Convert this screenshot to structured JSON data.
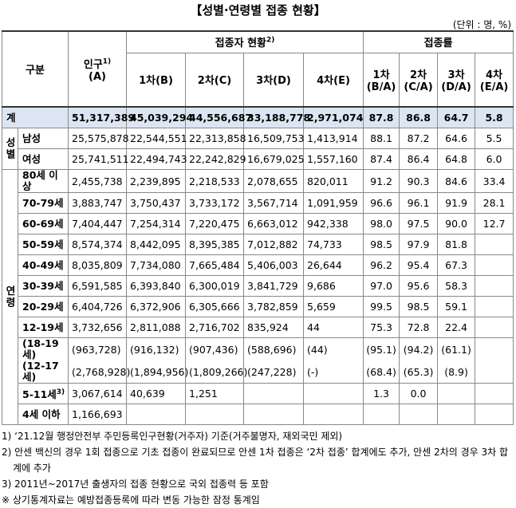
{
  "title": "【성별·연령별 접종 현황】",
  "unit": "(단위 : 명, %)",
  "header": {
    "category": "구분",
    "population": {
      "text": "인구",
      "note": "1)",
      "sub": "(A)"
    },
    "vaccinated": {
      "text": "접종자 현황",
      "note": "2)",
      "columns": [
        "1차(B)",
        "2차(C)",
        "3차(D)",
        "4차(E)"
      ]
    },
    "rate": {
      "text": "접종률",
      "columns": [
        [
          "1차",
          "(B/A)"
        ],
        [
          "2차",
          "(C/A)"
        ],
        [
          "3차",
          "(D/A)"
        ],
        [
          "4차",
          "(E/A)"
        ]
      ]
    }
  },
  "sections": [
    {
      "label": null,
      "rows": [
        {
          "label": "계",
          "values": [
            "51,317,389",
            "45,039,294",
            "44,556,687",
            "33,188,778",
            "2,971,074",
            "87.8",
            "86.8",
            "64.7",
            "5.8"
          ]
        }
      ]
    },
    {
      "label": "성별",
      "rows": [
        {
          "label": "남성",
          "values": [
            "25,575,878",
            "22,544,551",
            "22,313,858",
            "16,509,753",
            "1,413,914",
            "88.1",
            "87.2",
            "64.6",
            "5.5"
          ]
        },
        {
          "label": "여성",
          "values": [
            "25,741,511",
            "22,494,743",
            "22,242,829",
            "16,679,025",
            "1,557,160",
            "87.4",
            "86.4",
            "64.8",
            "6.0"
          ]
        }
      ]
    },
    {
      "label": "연령",
      "rows": [
        {
          "label": "80세 이상",
          "values": [
            "2,455,738",
            "2,239,895",
            "2,218,533",
            "2,078,655",
            "820,011",
            "91.2",
            "90.3",
            "84.6",
            "33.4"
          ]
        },
        {
          "label": "70-79세",
          "values": [
            "3,883,747",
            "3,750,437",
            "3,733,172",
            "3,567,714",
            "1,091,959",
            "96.6",
            "96.1",
            "91.9",
            "28.1"
          ]
        },
        {
          "label": "60-69세",
          "values": [
            "7,404,447",
            "7,254,314",
            "7,220,475",
            "6,663,012",
            "942,338",
            "98.0",
            "97.5",
            "90.0",
            "12.7"
          ]
        },
        {
          "label": "50-59세",
          "values": [
            "8,574,374",
            "8,442,095",
            "8,395,385",
            "7,012,882",
            "74,733",
            "98.5",
            "97.9",
            "81.8",
            null
          ]
        },
        {
          "label": "40-49세",
          "values": [
            "8,035,809",
            "7,734,080",
            "7,665,484",
            "5,406,003",
            "26,644",
            "96.2",
            "95.4",
            "67.3",
            null
          ]
        },
        {
          "label": "30-39세",
          "values": [
            "6,591,585",
            "6,393,840",
            "6,300,019",
            "3,841,729",
            "9,686",
            "97.0",
            "95.6",
            "58.3",
            null
          ]
        },
        {
          "label": "20-29세",
          "values": [
            "6,404,726",
            "6,372,906",
            "6,305,666",
            "3,782,859",
            "5,659",
            "99.5",
            "98.5",
            "59.1",
            null
          ]
        },
        {
          "label": "12-19세",
          "values": [
            "3,732,656",
            "2,811,088",
            "2,716,702",
            "835,924",
            "44",
            "75.3",
            "72.8",
            "22.4",
            null
          ]
        },
        {
          "breakdown": [
            {
              "label": "(18-19세)",
              "values": [
                "(963,728)",
                "(916,132)",
                "(907,436)",
                "(588,696)",
                "(44)",
                "(95.1)",
                "(94.2)",
                "(61.1)",
                null
              ]
            },
            {
              "label": "(12-17세)",
              "values": [
                "(2,768,928)",
                "(1,894,956)",
                "(1,809,266)",
                "(247,228)",
                "(-)",
                "(68.4)",
                "(65.3)",
                "(8.9)",
                null
              ]
            }
          ]
        },
        {
          "label": "5-11세",
          "note": "3)",
          "values": [
            "3,067,614",
            "40,639",
            "1,251",
            null,
            null,
            "1.3",
            "0.0",
            null,
            null
          ]
        },
        {
          "label": "4세 이하",
          "values": [
            "1,166,693",
            null,
            null,
            null,
            null,
            null,
            null,
            null,
            null
          ]
        }
      ]
    }
  ],
  "footnotes": [
    "1) ‘21.12월 행정안전부 주민등록인구현황(거주자) 기준(거주불명자, 재외국민 제외)",
    "2) 안센 백신의 경우 1회 접종으로 기초 접종이 완료되므로 안센 1차 접종은 ‘2차 접종’ 합계에도 추가, 안센 2차의 경우 3차 합계에 추가",
    "3) 2011년~2017년 출생자의 접종 현황으로 국외 접종력 등 포함",
    "※ 상기통계자료는 예방접종등록에 따라 변동 가능한 잠정 통계임"
  ]
}
